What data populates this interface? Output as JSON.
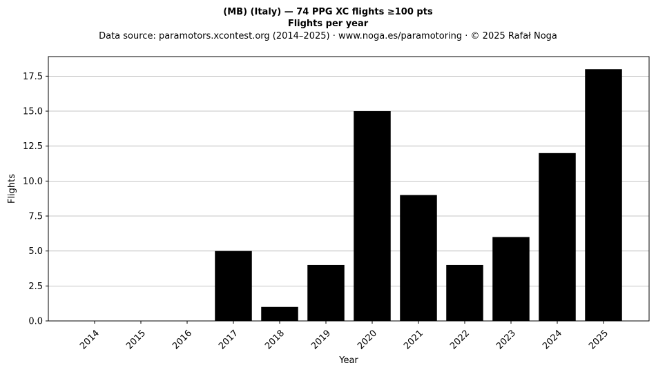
{
  "chart_data": {
    "type": "bar",
    "title": "(MB) (Italy)  —  74 PPG XC flights ≥100 pts",
    "subtitle": "Flights per year",
    "source_line": "Data source: paramotors.xcontest.org (2014–2025)  ·  www.noga.es/paramotoring  ·  © 2025 Rafał Noga",
    "xlabel": "Year",
    "ylabel": "Flights",
    "categories": [
      "2014",
      "2015",
      "2016",
      "2017",
      "2018",
      "2019",
      "2020",
      "2021",
      "2022",
      "2023",
      "2024",
      "2025"
    ],
    "values": [
      0,
      0,
      0,
      5,
      1,
      4,
      15,
      9,
      4,
      6,
      12,
      18
    ],
    "ylim": [
      0,
      18.9
    ],
    "yticks": [
      0.0,
      2.5,
      5.0,
      7.5,
      10.0,
      12.5,
      15.0,
      17.5
    ],
    "ytick_labels": [
      "0.0",
      "2.5",
      "5.0",
      "7.5",
      "10.0",
      "12.5",
      "15.0",
      "17.5"
    ],
    "grid": "y",
    "bar_color": "#000000",
    "grid_color": "#b0b0b0"
  }
}
